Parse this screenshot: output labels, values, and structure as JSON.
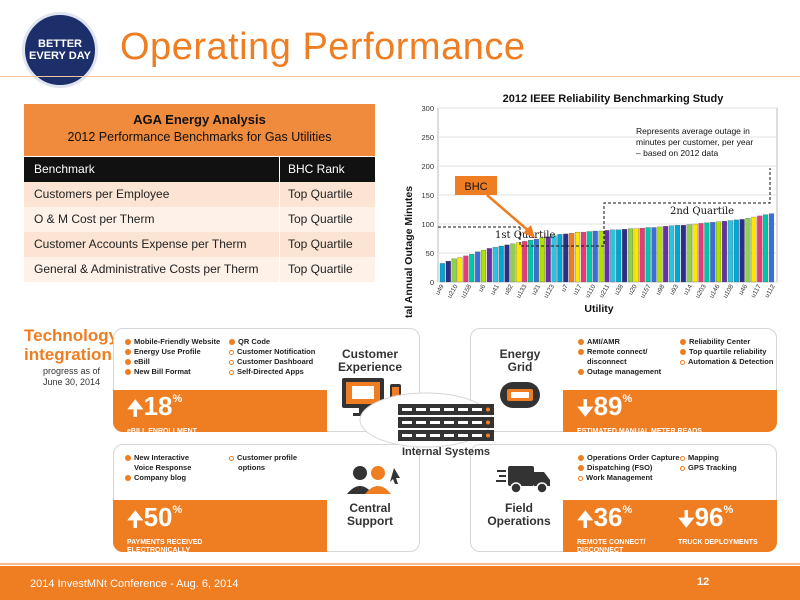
{
  "header": {
    "badge_line1": "BETTER",
    "badge_line2": "EVERY DAY",
    "title": "Operating Performance"
  },
  "table": {
    "title": "AGA Energy Analysis",
    "subtitle": "2012 Performance Benchmarks for Gas Utilities",
    "col1_header": "Benchmark",
    "col2_header": "BHC Rank",
    "rows": [
      {
        "benchmark": "Customers per Employee",
        "rank": "Top Quartile"
      },
      {
        "benchmark": "O & M Cost per Therm",
        "rank": "Top Quartile"
      },
      {
        "benchmark": "Customer Accounts Expense per Therm",
        "rank": "Top Quartile"
      },
      {
        "benchmark": "General & Administrative Costs per Therm",
        "rank": "Top Quartile"
      }
    ]
  },
  "chart_data": {
    "type": "bar",
    "title": "2012 IEEE Reliability Benchmarking Study",
    "xlabel": "Utility",
    "ylabel": "Total Annual Outage Minutes",
    "ylim": [
      0,
      300
    ],
    "yticks": [
      0,
      50,
      100,
      150,
      200,
      250,
      300
    ],
    "tick_labels": [
      "u49",
      "u210",
      "u158",
      "u6",
      "u41",
      "u82",
      "u133",
      "u21",
      "u123",
      "u7",
      "u17",
      "u110",
      "u211",
      "u38",
      "u20",
      "u157",
      "u98",
      "u93",
      "u14",
      "u203",
      "u146",
      "u108",
      "u46",
      "u117",
      "u112"
    ],
    "values": [
      32,
      36,
      40,
      42,
      45,
      48,
      52,
      55,
      58,
      60,
      62,
      64,
      66,
      68,
      70,
      72,
      74,
      76,
      78,
      80,
      82,
      83,
      84,
      86,
      86,
      87,
      88,
      88,
      89,
      90,
      90,
      91,
      92,
      92,
      93,
      94,
      94,
      95,
      96,
      97,
      98,
      98,
      99,
      100,
      101,
      102,
      103,
      104,
      105,
      106,
      107,
      108,
      110,
      112,
      114,
      116,
      118
    ],
    "bhc_index": 22,
    "annotation_note": "Represents average outage in minutes per customer, per year – based on 2012 data",
    "bhc_label": "BHC",
    "quartile1_label": "1st Quartile",
    "quartile2_label": "2nd Quartile",
    "grid": true,
    "colors": {
      "highlight": "#ef7d22"
    }
  },
  "tech": {
    "title_line1": "Technology",
    "title_line2": "integration",
    "sub_line1": "progress as of",
    "sub_line2": "June 30, 2014",
    "hub_label": "Internal Systems"
  },
  "customer": {
    "label_line1": "Customer",
    "label_line2": "Experience",
    "col1": [
      "Mobile-Friendly Website",
      "Energy Use Profile",
      "eBill",
      "New Bill Format"
    ],
    "col2": [
      "QR Code",
      "Customer Notification",
      "Customer Dashboard",
      "Self-Directed Apps"
    ],
    "stat_value": "18",
    "stat_caption": "eBILL ENROLLMENT"
  },
  "energy": {
    "label_line1": "Energy",
    "label_line2": "Grid",
    "col1": [
      "AMI/AMR",
      "Remote connect/",
      "disconnect",
      "Outage management"
    ],
    "col2": [
      "Reliability Center",
      "Top quartile reliability",
      "Automation & Detection"
    ],
    "stat_value": "89",
    "stat_caption": "ESTIMATED MANUAL METER READS"
  },
  "central": {
    "label_line1": "Central",
    "label_line2": "Support",
    "col1": [
      "New Interactive",
      "Voice Response",
      "Company blog"
    ],
    "col2": [
      "Customer profile",
      "options"
    ],
    "stat_value": "50",
    "stat_caption_line1": "PAYMENTS RECEIVED",
    "stat_caption_line2": "ELECTRONICALLY"
  },
  "field": {
    "label_line1": "Field",
    "label_line2": "Operations",
    "col1": [
      "Operations Order Capture",
      "Dispatching (FSO)",
      "Work Management"
    ],
    "col2": [
      "Mapping",
      "GPS Tracking"
    ],
    "stat1_value": "36",
    "stat1_caption_line1": "REMOTE CONNECT/",
    "stat1_caption_line2": "DISCONNECT",
    "stat2_value": "96",
    "stat2_caption": "TRUCK DEPLOYMENTS"
  },
  "footer": {
    "text": "2014 InvestMNt Conference - Aug. 6, 2014",
    "page": "12"
  }
}
